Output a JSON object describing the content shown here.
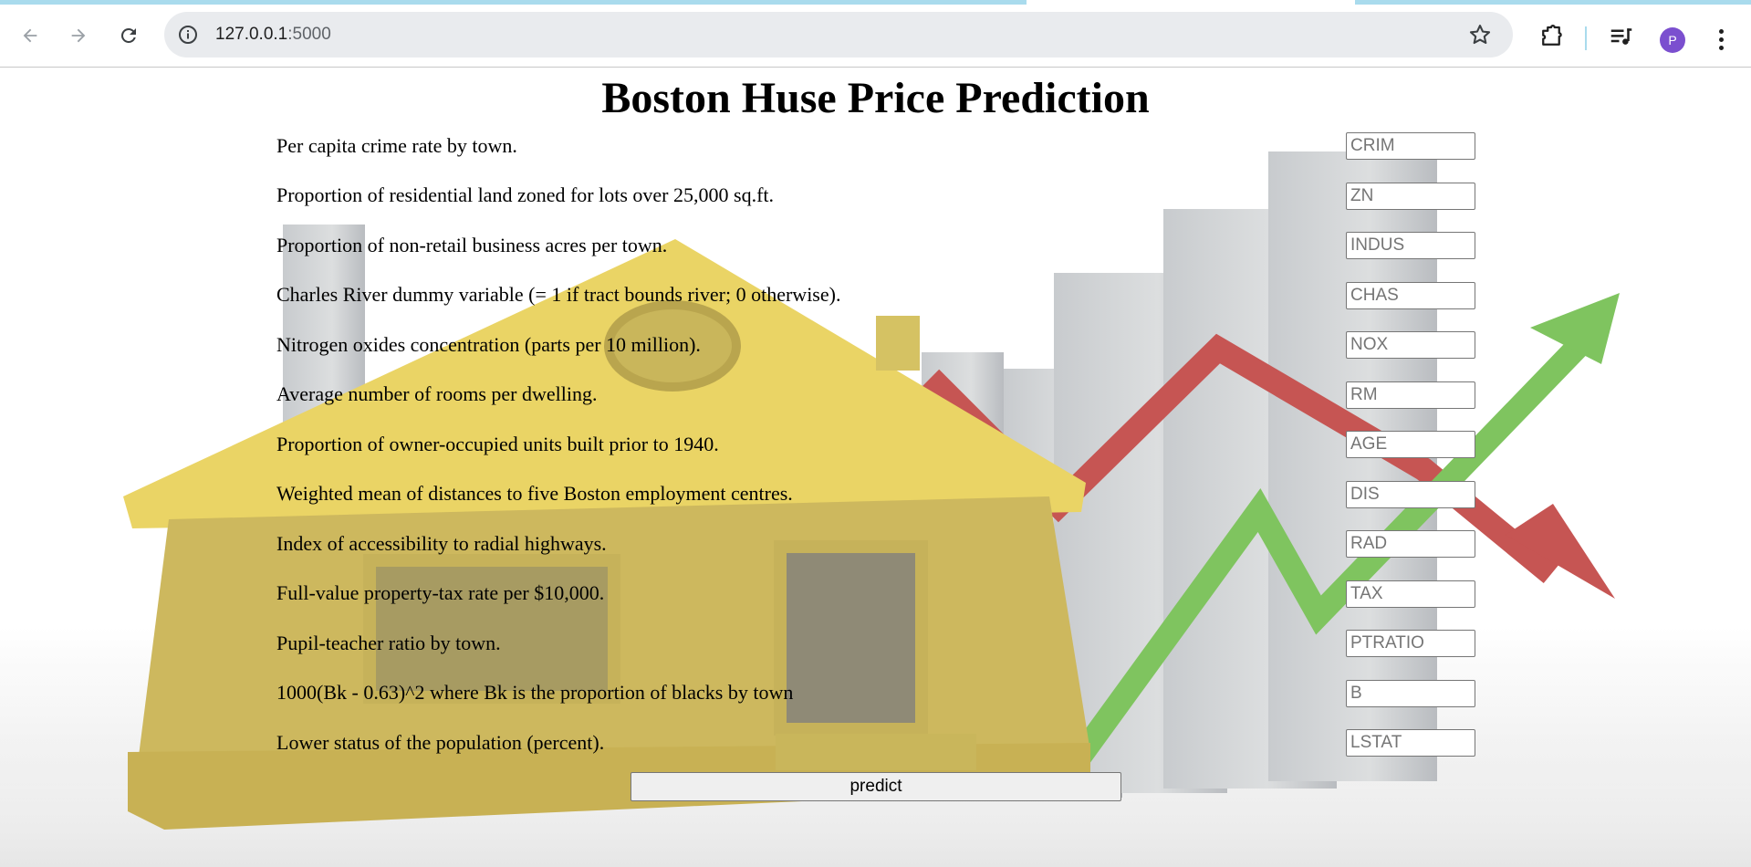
{
  "browser": {
    "url_host": "127.0.0.1",
    "url_port": ":5000",
    "avatar_initial": "P"
  },
  "page": {
    "title": "Boston Huse Price Prediction",
    "predict_label": "predict",
    "fields": [
      {
        "label": "Per capita crime rate by town.",
        "placeholder": "CRIM"
      },
      {
        "label": "Proportion of residential land zoned for lots over 25,000 sq.ft.",
        "placeholder": "ZN"
      },
      {
        "label": "Proportion of non-retail business acres per town.",
        "placeholder": "INDUS"
      },
      {
        "label": "Charles River dummy variable (= 1 if tract bounds river; 0 otherwise).",
        "placeholder": "CHAS"
      },
      {
        "label": "Nitrogen oxides concentration (parts per 10 million).",
        "placeholder": "NOX"
      },
      {
        "label": "Average number of rooms per dwelling.",
        "placeholder": "RM"
      },
      {
        "label": "Proportion of owner-occupied units built prior to 1940.",
        "placeholder": "AGE"
      },
      {
        "label": "Weighted mean of distances to five Boston employment centres.",
        "placeholder": "DIS"
      },
      {
        "label": "Index of accessibility to radial highways.",
        "placeholder": "RAD"
      },
      {
        "label": "Full-value property-tax rate per $10,000.",
        "placeholder": "TAX"
      },
      {
        "label": "Pupil-teacher ratio by town.",
        "placeholder": "PTRATIO"
      },
      {
        "label": "1000(Bk - 0.63)^2 where Bk is the proportion of blacks by town",
        "placeholder": "B"
      },
      {
        "label": "Lower status of the population (percent).",
        "placeholder": "LSTAT"
      }
    ]
  }
}
